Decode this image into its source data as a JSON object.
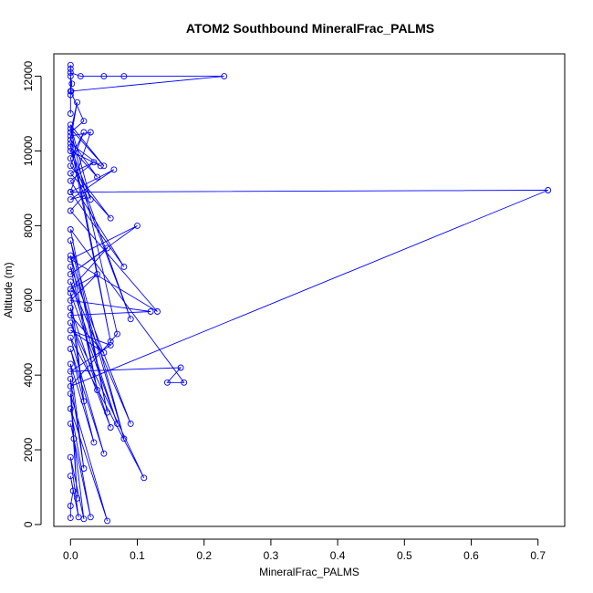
{
  "chart_data": {
    "type": "line",
    "title": "ATOM2 Southbound MineralFrac_PALMS",
    "xlabel": "MineralFrac_PALMS",
    "ylabel": "Altitude (m)",
    "xlim": [
      -0.025,
      0.74
    ],
    "ylim": [
      -50,
      12600
    ],
    "xticks": [
      0,
      0.1,
      0.2,
      0.3,
      0.4,
      0.5,
      0.6,
      0.7
    ],
    "xtick_labels": [
      "0.0",
      "0.1",
      "0.2",
      "0.3",
      "0.4",
      "0.5",
      "0.6",
      "0.7"
    ],
    "yticks": [
      0,
      2000,
      4000,
      6000,
      8000,
      10000,
      12000
    ],
    "ytick_labels": [
      "0",
      "2000",
      "4000",
      "6000",
      "8000",
      "10000",
      "12000"
    ],
    "grid": false,
    "series": [
      {
        "color": "#0000ff",
        "marker": "open-circle",
        "x": [
          0.0,
          0.0,
          0.004,
          0.0,
          0.012,
          0.0,
          0.02,
          0.005,
          0.0,
          0.03,
          0.0,
          0.055,
          0.0,
          0.01,
          0.0,
          0.02,
          0.0,
          0.035,
          0.0,
          0.05,
          0.0,
          0.11,
          0.0,
          0.06,
          0.0,
          0.02,
          0.0,
          0.07,
          0.0,
          0.09,
          0.0,
          0.04,
          0.0,
          0.08,
          0.0,
          0.055,
          0.0,
          0.17,
          0.145,
          0.165,
          0.0,
          0.06,
          0.0,
          0.05,
          0.0,
          0.12,
          0.0,
          0.04,
          0.0,
          0.055,
          0.0,
          0.1,
          0.0,
          0.13,
          0.0,
          0.02,
          0.0,
          0.065,
          0.0,
          0.08,
          0.0,
          0.035,
          0.0,
          0.06,
          0.0,
          0.02,
          0.0,
          0.09,
          0.0,
          0.045,
          0.0,
          0.06,
          0.0,
          0.03,
          0.0,
          0.715,
          0.0,
          0.07,
          0.0,
          0.05,
          0.0,
          0.03,
          0.0,
          0.04,
          0.0,
          0.01,
          0.0,
          0.02,
          0.0,
          0.002,
          0.0,
          0.001,
          0.23,
          0.08,
          0.05,
          0.015,
          0.0,
          0.0,
          0.0,
          0.0,
          0.0
        ],
        "y": [
          180,
          500,
          900,
          1300,
          200,
          1800,
          150,
          2300,
          2700,
          200,
          3100,
          100,
          3500,
          700,
          3900,
          1500,
          4300,
          2200,
          4700,
          1900,
          5000,
          1250,
          5400,
          2600,
          5800,
          3300,
          6200,
          2700,
          6500,
          2700,
          6900,
          3600,
          7200,
          2300,
          7600,
          3000,
          7900,
          3800,
          3800,
          4200,
          4100,
          4800,
          5200,
          4600,
          5600,
          5700,
          6000,
          6700,
          6300,
          7400,
          6700,
          8000,
          7100,
          5700,
          8400,
          8800,
          8700,
          9500,
          8900,
          6900,
          9200,
          9700,
          9400,
          8200,
          9600,
          10500,
          9800,
          5500,
          10000,
          9600,
          10200,
          4900,
          10400,
          10500,
          8900,
          8950,
          3700,
          5100,
          10600,
          9600,
          10700,
          8700,
          10100,
          9300,
          10300,
          11300,
          10500,
          10800,
          11600,
          11800,
          12000,
          11600,
          12000,
          12000,
          12000,
          12000,
          12100,
          12200,
          12300,
          11500,
          11000
        ]
      }
    ]
  }
}
